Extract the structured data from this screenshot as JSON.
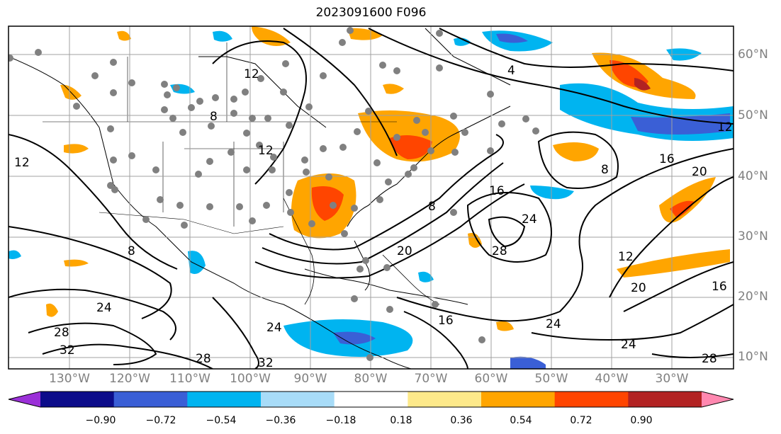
{
  "title": "2023091600 F096",
  "lat_labels": [
    "60°N",
    "50°N",
    "40°N",
    "30°N",
    "20°N",
    "10°N"
  ],
  "lon_labels": [
    "130°W",
    "120°W",
    "110°W",
    "100°W",
    "90°W",
    "80°W",
    "70°W",
    "60°W",
    "50°W",
    "40°W",
    "30°W"
  ],
  "contour_labels": [
    "4",
    "8",
    "12",
    "16",
    "20",
    "24",
    "28",
    "32"
  ],
  "colorbar": {
    "tick_labels": [
      "−0.90",
      "−0.72",
      "−0.54",
      "−0.36",
      "−0.18",
      "0.18",
      "0.36",
      "0.54",
      "0.72",
      "0.90"
    ],
    "colors": [
      "#9b30d8",
      "#0c0c8a",
      "#3a5fd6",
      "#00b4f0",
      "#a8dcf8",
      "#ffffff",
      "#fde98a",
      "#ffa500",
      "#ff4500",
      "#b22222",
      "#ff88b0"
    ]
  },
  "colors": {
    "grid": "#a0a0a0",
    "contour": "#000000",
    "station": "#808080"
  }
}
